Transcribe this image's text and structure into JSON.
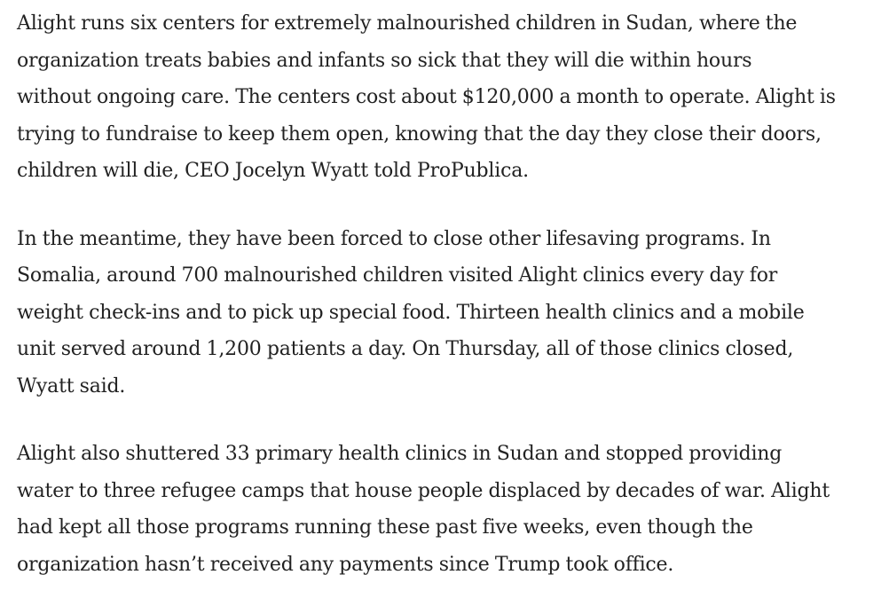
{
  "article": {
    "paragraphs": [
      {
        "lines": [
          "Alight runs six centers for extremely malnourished children in Sudan, where the",
          "organization treats babies and infants so sick that they will die within hours",
          "without ongoing care. The centers cost about $120,000 a month to operate. Alight is",
          "trying to fundraise to keep them open, knowing that the day they close their doors,",
          "children will die, CEO Jocelyn Wyatt told ProPublica."
        ]
      },
      {
        "lines": [
          "In the meantime, they have been forced to close other lifesaving programs. In",
          "Somalia, around 700 malnourished children visited Alight clinics every day for",
          "weight check-ins and to pick up special food. Thirteen health clinics and a mobile",
          "unit served around 1,200 patients a day. On Thursday, all of those clinics closed,",
          "Wyatt said."
        ]
      },
      {
        "lines": [
          "Alight also shuttered 33 primary health clinics in Sudan and stopped providing",
          "water to three refugee camps that house people displaced by decades of war. Alight",
          "had kept all those programs running these past five weeks, even though the",
          "organization hasn’t received any payments since Trump took office."
        ]
      }
    ]
  }
}
